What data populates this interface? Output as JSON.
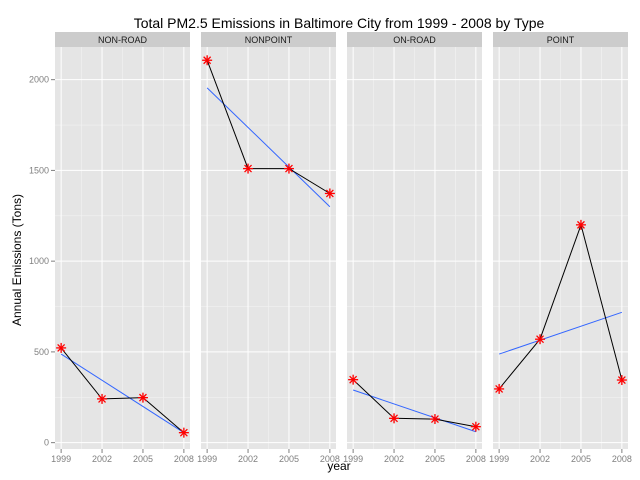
{
  "chart_data": {
    "type": "line",
    "title": "Total PM2.5 Emissions in Baltimore City from 1999 - 2008 by Type",
    "xlabel": "year",
    "ylabel": "Annual Emissions (Tons)",
    "x": [
      1999,
      2002,
      2005,
      2008
    ],
    "x_tick_labels": [
      "1999",
      "2002",
      "2005",
      "2008"
    ],
    "y_ticks": [
      0,
      500,
      1000,
      1500,
      2000
    ],
    "y_tick_labels": [
      "0",
      "500",
      "1000",
      "1500",
      "2000"
    ],
    "ylim": [
      -35,
      2180
    ],
    "grid": true,
    "facets": [
      {
        "name": "NON-ROAD",
        "values": [
          522,
          241,
          248,
          55
        ],
        "trend": [
          488,
          55
        ]
      },
      {
        "name": "NONPOINT",
        "values": [
          2107,
          1510,
          1510,
          1373
        ],
        "trend": [
          1955,
          1300
        ]
      },
      {
        "name": "ON-ROAD",
        "values": [
          347,
          134,
          130,
          88
        ],
        "trend": [
          290,
          60
        ]
      },
      {
        "name": "POINT",
        "values": [
          296,
          570,
          1200,
          345
        ],
        "trend": [
          488,
          718
        ]
      }
    ],
    "colors": {
      "line": "#000000",
      "points": "#ff0000",
      "trend": "#3366ff",
      "panel_background": "#e5e5e5",
      "strip_background": "#cccccc"
    }
  }
}
